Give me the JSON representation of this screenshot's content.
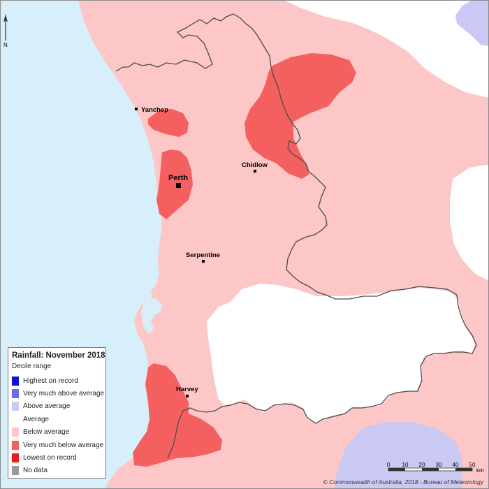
{
  "colors": {
    "ocean": "#d7eefb",
    "below_average": "#fcc7c6",
    "very_much_below_average": "#f46060",
    "above_average": "#c9c9f4",
    "average": "#ffffff",
    "boundary": "#4a4a4a"
  },
  "north_arrow": {
    "label": "N",
    "icon": "north-arrow-icon"
  },
  "towns": [
    {
      "name": "Yanchep",
      "marker": "small"
    },
    {
      "name": "Chidlow",
      "marker": "small"
    },
    {
      "name": "Perth",
      "marker": "large"
    },
    {
      "name": "Serpentine",
      "marker": "small"
    },
    {
      "name": "Harvey",
      "marker": "small"
    }
  ],
  "legend": {
    "title": "Rainfall: November 2018",
    "subtitle": "Decile range",
    "items": [
      {
        "label": "Highest on record",
        "color": "#1010d8"
      },
      {
        "label": "Very much above average",
        "color": "#6b6bef"
      },
      {
        "label": "Above average",
        "color": "#c9c9f4"
      },
      {
        "label": "Average",
        "color": "#ffffff"
      },
      {
        "label": "Below average",
        "color": "#fcc7c6"
      },
      {
        "label": "Very much below average",
        "color": "#f46060"
      },
      {
        "label": "Lowest on record",
        "color": "#f21818"
      },
      {
        "label": "No data",
        "color": "#9a9a9a"
      }
    ]
  },
  "scale": {
    "ticks": [
      "0",
      "10",
      "20",
      "30",
      "40",
      "50"
    ],
    "unit": "km"
  },
  "copyright": "© Commonwealth of Australia, 2018 - Bureau of Meteorology"
}
